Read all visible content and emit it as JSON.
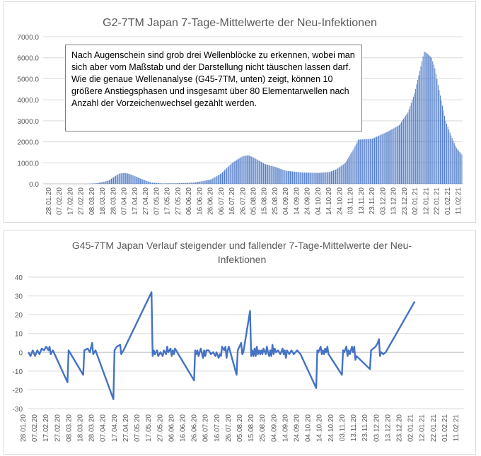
{
  "chart_data": [
    {
      "type": "bar",
      "title": "G2-7TM Japan 7-Tage-Mittelwerte der Neu-Infektionen",
      "ylim": [
        0,
        7000
      ],
      "y_ticks": [
        "0.0",
        "1000.0",
        "2000.0",
        "3000.0",
        "4000.0",
        "5000.0",
        "6000.0",
        "7000.0"
      ],
      "x_tick_labels": [
        "28.01.20",
        "07.02.20",
        "17.02.20",
        "27.02.20",
        "08.03.20",
        "18.03.20",
        "28.03.20",
        "07.04.20",
        "17.04.20",
        "27.04.20",
        "07.05.20",
        "17.05.20",
        "27.05.20",
        "06.06.20",
        "16.06.20",
        "26.06.20",
        "06.07.20",
        "16.07.20",
        "26.07.20",
        "05.08.20",
        "15.08.20",
        "25.08.20",
        "04.09.20",
        "14.09.20",
        "24.09.20",
        "04.10.20",
        "14.10.20",
        "24.10.20",
        "03.11.20",
        "13.11.20",
        "23.11.20",
        "03.12.20",
        "13.12.20",
        "23.12.20",
        "02.01.21",
        "12.01.21",
        "22.01.21",
        "01.02.21",
        "11.02.21"
      ],
      "day_count": 389,
      "series": [
        {
          "color": "#4472c4",
          "daily_values_anchors": [
            [
              0,
              0
            ],
            [
              40,
              0
            ],
            [
              50,
              30
            ],
            [
              60,
              150
            ],
            [
              70,
              480
            ],
            [
              75,
              520
            ],
            [
              80,
              470
            ],
            [
              90,
              250
            ],
            [
              100,
              60
            ],
            [
              110,
              20
            ],
            [
              125,
              30
            ],
            [
              140,
              60
            ],
            [
              155,
              200
            ],
            [
              165,
              500
            ],
            [
              175,
              1000
            ],
            [
              185,
              1320
            ],
            [
              190,
              1360
            ],
            [
              195,
              1250
            ],
            [
              205,
              950
            ],
            [
              215,
              800
            ],
            [
              225,
              620
            ],
            [
              240,
              540
            ],
            [
              255,
              520
            ],
            [
              265,
              560
            ],
            [
              272,
              700
            ],
            [
              280,
              1000
            ],
            [
              287,
              1600
            ],
            [
              292,
              2100
            ],
            [
              305,
              2150
            ],
            [
              320,
              2500
            ],
            [
              330,
              2800
            ],
            [
              338,
              3400
            ],
            [
              344,
              4300
            ],
            [
              350,
              5600
            ],
            [
              353,
              6300
            ],
            [
              356,
              6200
            ],
            [
              360,
              6000
            ],
            [
              363,
              5500
            ],
            [
              368,
              4200
            ],
            [
              373,
              3000
            ],
            [
              378,
              2300
            ],
            [
              383,
              1700
            ],
            [
              388,
              1400
            ]
          ],
          "values_note": "7-day mean of new infections per day"
        }
      ],
      "annotation": "Nach Augenschein sind grob drei Wellenblöcke zu erkennen, wobei man sich aber vom Maßstab und der Darstellung nicht täuschen lassen darf. Wie die genaue Wellenanalyse (G45-7TM, unten) zeigt, können 10 größere Anstiegsphasen und insgesamt über 80 Elementarwellen nach Anzahl der Vorzeichenwechsel gezählt werden."
    },
    {
      "type": "line",
      "title": "G45-7TM Japan Verlauf steigender und fallender 7-Tage-Mittelwerte der Neu-Infektionen",
      "title_lines": [
        "G45-7TM Japan Verlauf steigender und fallender 7-Tage-Mittelwerte der Neu-",
        "Infektionen"
      ],
      "ylim": [
        -30,
        40
      ],
      "y_ticks": [
        "-30",
        "-20",
        "-10",
        "0",
        "10",
        "20",
        "30",
        "40"
      ],
      "x_tick_labels": [
        "28.01.20",
        "07.02.20",
        "17.02.20",
        "27.02.20",
        "08.03.20",
        "18.03.20",
        "28.03.20",
        "07.04.20",
        "17.04.20",
        "27.04.20",
        "07.05.20",
        "17.05.20",
        "27.05.20",
        "06.06.20",
        "16.06.20",
        "26.06.20",
        "06.07.20",
        "16.07.20",
        "26.07.20",
        "05.08.20",
        "15.08.20",
        "25.08.20",
        "04.09.20",
        "14.09.20",
        "24.09.20",
        "04.10.20",
        "14.10.20",
        "24.10.20",
        "03.11.20",
        "13.11.20",
        "23.11.20",
        "03.12.20",
        "13.12.20",
        "23.12.20",
        "02.01.21",
        "12.01.21",
        "22.01.21",
        "01.02.21",
        "11.02.21"
      ],
      "series": [
        {
          "color": "#4472c4",
          "points": [
            [
              0,
              0
            ],
            [
              2,
              -2
            ],
            [
              4,
              1
            ],
            [
              6,
              -2
            ],
            [
              8,
              1
            ],
            [
              10,
              -1
            ],
            [
              12,
              2
            ],
            [
              14,
              1
            ],
            [
              16,
              3
            ],
            [
              18,
              1
            ],
            [
              19,
              3
            ],
            [
              20,
              -1
            ],
            [
              22,
              1
            ],
            [
              35,
              -16
            ],
            [
              36,
              1
            ],
            [
              49,
              -12
            ],
            [
              50,
              1
            ],
            [
              53,
              2
            ],
            [
              55,
              0
            ],
            [
              57,
              5
            ],
            [
              58,
              -1
            ],
            [
              60,
              1
            ],
            [
              76,
              -25
            ],
            [
              77,
              1
            ],
            [
              79,
              3
            ],
            [
              82,
              4
            ],
            [
              83,
              -1
            ],
            [
              85,
              1
            ],
            [
              110,
              32
            ],
            [
              111,
              -2
            ],
            [
              112,
              1
            ],
            [
              113,
              -1
            ],
            [
              115,
              1
            ],
            [
              116,
              -2
            ],
            [
              118,
              0
            ],
            [
              120,
              -2
            ],
            [
              121,
              1
            ],
            [
              123,
              -1
            ],
            [
              124,
              3
            ],
            [
              125,
              0
            ],
            [
              127,
              2
            ],
            [
              128,
              -2
            ],
            [
              129,
              1
            ],
            [
              130,
              -1
            ],
            [
              131,
              2
            ],
            [
              148,
              -15
            ],
            [
              149,
              1
            ],
            [
              150,
              -1
            ],
            [
              151,
              1
            ],
            [
              152,
              -2
            ],
            [
              154,
              2
            ],
            [
              156,
              -3
            ],
            [
              157,
              1
            ],
            [
              158,
              -2
            ],
            [
              159,
              1
            ],
            [
              161,
              1
            ],
            [
              163,
              -1
            ],
            [
              165,
              0
            ],
            [
              167,
              -2
            ],
            [
              168,
              0
            ],
            [
              170,
              -3
            ],
            [
              171,
              -1
            ],
            [
              172,
              -2
            ],
            [
              173,
              3
            ],
            [
              175,
              1
            ],
            [
              176,
              3
            ],
            [
              177,
              -3
            ],
            [
              178,
              1
            ],
            [
              179,
              3
            ],
            [
              186,
              -12
            ],
            [
              187,
              1
            ],
            [
              190,
              5
            ],
            [
              191,
              -1
            ],
            [
              192,
              0
            ],
            [
              198,
              22
            ],
            [
              199,
              -2
            ],
            [
              200,
              1
            ],
            [
              201,
              -2
            ],
            [
              202,
              2
            ],
            [
              203,
              -2
            ],
            [
              204,
              3
            ],
            [
              205,
              -1
            ],
            [
              206,
              1
            ],
            [
              207,
              -1
            ],
            [
              208,
              1
            ],
            [
              209,
              -1
            ],
            [
              210,
              2
            ],
            [
              212,
              -1
            ],
            [
              213,
              3
            ],
            [
              214,
              0
            ],
            [
              215,
              -2
            ],
            [
              216,
              1
            ],
            [
              217,
              -2
            ],
            [
              218,
              4
            ],
            [
              219,
              -1
            ],
            [
              220,
              2
            ],
            [
              221,
              0
            ],
            [
              223,
              1
            ],
            [
              225,
              -1
            ],
            [
              227,
              2
            ],
            [
              228,
              -1
            ],
            [
              229,
              1
            ],
            [
              230,
              -3
            ],
            [
              231,
              1
            ],
            [
              233,
              -1
            ],
            [
              235,
              1
            ],
            [
              237,
              -1
            ],
            [
              240,
              1
            ],
            [
              243,
              -1
            ],
            [
              257,
              -19
            ],
            [
              258,
              1
            ],
            [
              259,
              0
            ],
            [
              261,
              3
            ],
            [
              262,
              -1
            ],
            [
              263,
              1
            ],
            [
              264,
              -1
            ],
            [
              265,
              2
            ],
            [
              266,
              0
            ],
            [
              267,
              3
            ],
            [
              268,
              -1
            ],
            [
              280,
              -12
            ],
            [
              281,
              1
            ],
            [
              282,
              0
            ],
            [
              284,
              3
            ],
            [
              285,
              -2
            ],
            [
              286,
              1
            ],
            [
              287,
              -1
            ],
            [
              289,
              3
            ],
            [
              290,
              0
            ],
            [
              291,
              3
            ],
            [
              292,
              -4
            ],
            [
              293,
              -2
            ],
            [
              305,
              -9
            ],
            [
              306,
              1
            ],
            [
              308,
              2
            ],
            [
              310,
              3
            ],
            [
              312,
              5
            ],
            [
              313,
              7
            ],
            [
              314,
              -2
            ],
            [
              315,
              0
            ],
            [
              317,
              -1
            ],
            [
              319,
              0
            ],
            [
              321,
              2
            ],
            [
              345,
              27
            ]
          ]
        }
      ]
    }
  ]
}
